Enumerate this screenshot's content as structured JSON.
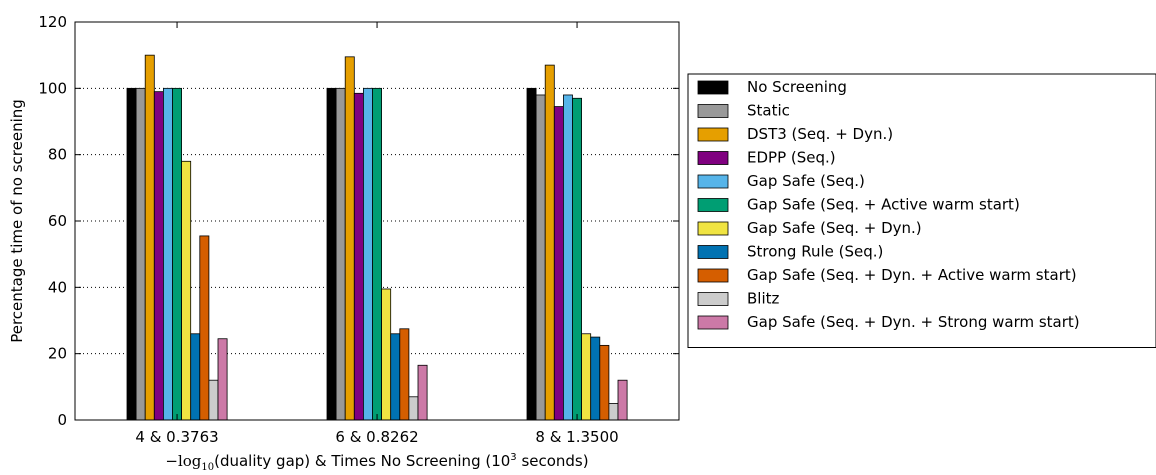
{
  "chart_data": {
    "type": "bar",
    "xlabel_math": "−log",
    "xlabel_math_sub": "10",
    "xlabel_text": "(duality gap) & Times No Screening (10",
    "xlabel_sup": "3",
    "xlabel_tail": " seconds)",
    "ylabel": "Percentage time of no screening",
    "ylim": [
      0,
      120
    ],
    "yticks": [
      "0",
      "20",
      "40",
      "60",
      "80",
      "100",
      "120"
    ],
    "grid": "horizontal dotted",
    "legend_position": "right",
    "categories": [
      "4 & 0.3763",
      "6 & 0.8262",
      "8 & 1.3500"
    ],
    "series": [
      {
        "name": "No Screening",
        "color": "#000000",
        "values": [
          100,
          100,
          100
        ]
      },
      {
        "name": "Static",
        "color": "#999999",
        "values": [
          100,
          100,
          98
        ]
      },
      {
        "name": "DST3 (Seq. + Dyn.)",
        "color": "#e69f00",
        "values": [
          110,
          109.5,
          107
        ]
      },
      {
        "name": "EDPP (Seq.)",
        "color": "#800080",
        "values": [
          99,
          98.5,
          94.5
        ]
      },
      {
        "name": "Gap Safe (Seq.)",
        "color": "#56b4e9",
        "values": [
          100,
          100,
          98
        ]
      },
      {
        "name": "Gap Safe (Seq. + Active warm start)",
        "color": "#009e73",
        "values": [
          100,
          100,
          97
        ]
      },
      {
        "name": "Gap Safe (Seq. + Dyn.)",
        "color": "#f0e442",
        "values": [
          78,
          39.5,
          26
        ]
      },
      {
        "name": "Strong Rule (Seq.)",
        "color": "#0072b2",
        "values": [
          26,
          26,
          25
        ]
      },
      {
        "name": "Gap Safe (Seq. + Dyn. + Active warm start)",
        "color": "#d55e00",
        "values": [
          55.5,
          27.5,
          22.5
        ]
      },
      {
        "name": "Blitz",
        "color": "#cccccc",
        "values": [
          12,
          7,
          5
        ]
      },
      {
        "name": "Gap Safe (Seq. + Dyn. + Strong warm start)",
        "color": "#cc79a7",
        "values": [
          24.5,
          16.5,
          12
        ]
      }
    ]
  }
}
